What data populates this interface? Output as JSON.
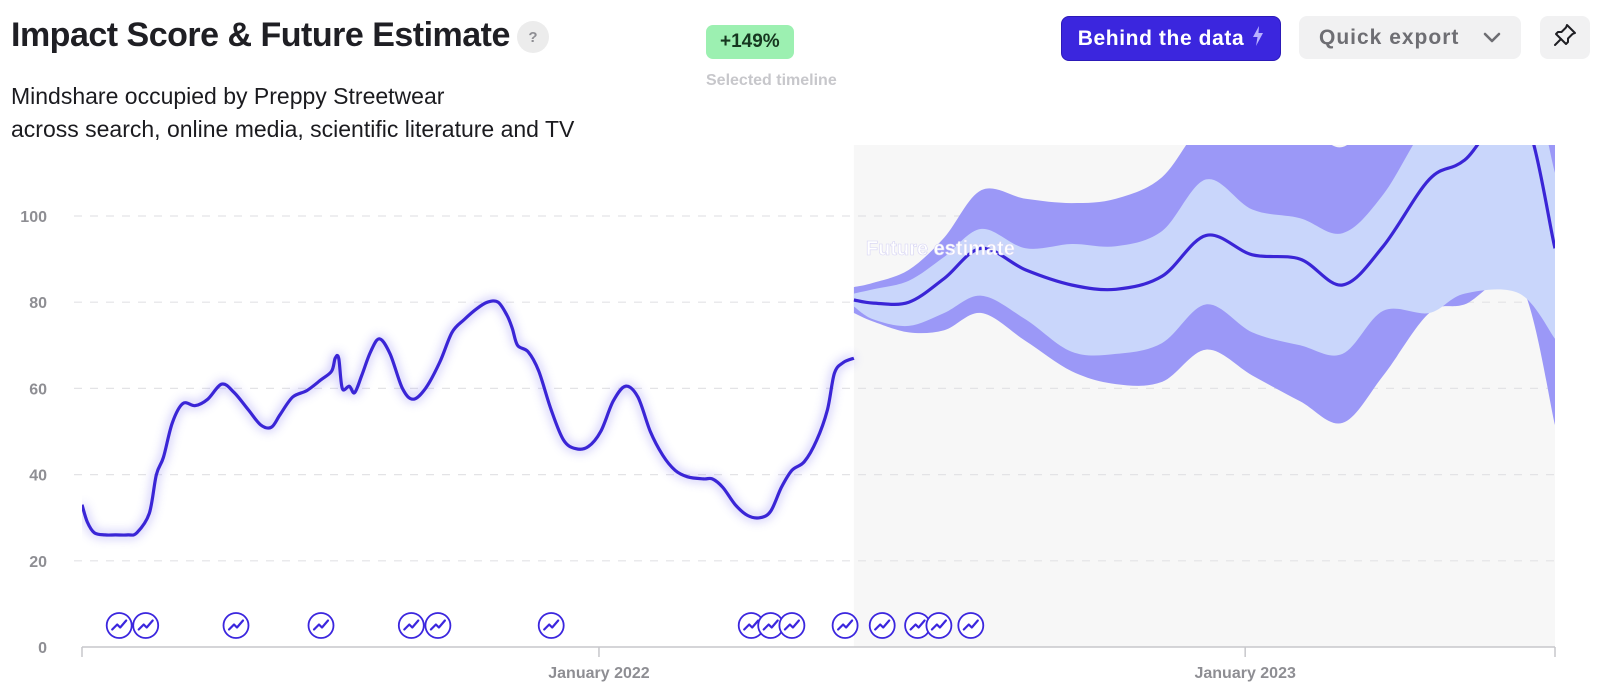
{
  "header": {
    "title": "Impact Score & Future Estimate",
    "help_label": "?",
    "subtitle_line1": "Mindshare occupied by Preppy Streetwear",
    "subtitle_line2": "across search, online media, scientific literature and TV",
    "badge_value": "+149%",
    "badge_caption": "Selected timeline"
  },
  "toolbar": {
    "behind_label": "Behind the data",
    "export_label": "Quick export",
    "icons": {
      "behind": "lightning-icon",
      "export": "chevron-down-icon",
      "pin": "pin-icon"
    }
  },
  "colors": {
    "accent": "#3b26de",
    "line": "#3a25d6",
    "band_outer": "#9b98f7",
    "band_inner": "#c9d6fb",
    "forecast_bg": "#f7f7f7",
    "badge_bg": "#9cf0b1"
  },
  "chart_data": {
    "type": "line",
    "title": "Impact Score & Future Estimate",
    "annotation": "Future estimate",
    "ylim": [
      0,
      100
    ],
    "y_ticks": [
      "0",
      "20",
      "40",
      "60",
      "80",
      "100"
    ],
    "x_ticks": [
      {
        "label": "January 2022",
        "date": "2022-01-01"
      },
      {
        "label": "January 2023",
        "date": "2023-01-01"
      }
    ],
    "x_range": [
      "2021-03-15",
      "2023-06-25"
    ],
    "forecast_start": "2022-05-25",
    "grid": true,
    "history": [
      [
        "2021-03-15",
        33
      ],
      [
        "2021-03-18",
        29
      ],
      [
        "2021-03-22",
        26.5
      ],
      [
        "2021-03-28",
        26
      ],
      [
        "2021-04-03",
        26
      ],
      [
        "2021-04-10",
        26
      ],
      [
        "2021-04-15",
        26.5
      ],
      [
        "2021-04-22",
        31
      ],
      [
        "2021-04-26",
        40
      ],
      [
        "2021-04-30",
        44
      ],
      [
        "2021-05-05",
        52
      ],
      [
        "2021-05-11",
        56.5
      ],
      [
        "2021-05-18",
        56
      ],
      [
        "2021-05-25",
        57.5
      ],
      [
        "2021-06-02",
        61
      ],
      [
        "2021-06-09",
        59
      ],
      [
        "2021-06-17",
        55
      ],
      [
        "2021-06-24",
        51.5
      ],
      [
        "2021-06-30",
        51
      ],
      [
        "2021-07-05",
        54
      ],
      [
        "2021-07-12",
        58
      ],
      [
        "2021-07-20",
        59.5
      ],
      [
        "2021-07-28",
        62
      ],
      [
        "2021-08-03",
        64
      ],
      [
        "2021-08-05",
        67
      ],
      [
        "2021-08-07",
        67
      ],
      [
        "2021-08-09",
        60
      ],
      [
        "2021-08-13",
        60.5
      ],
      [
        "2021-08-16",
        59
      ],
      [
        "2021-08-20",
        63
      ],
      [
        "2021-08-25",
        68.5
      ],
      [
        "2021-08-30",
        71.5
      ],
      [
        "2021-09-05",
        68
      ],
      [
        "2021-09-12",
        60
      ],
      [
        "2021-09-18",
        57.5
      ],
      [
        "2021-09-25",
        60
      ],
      [
        "2021-10-03",
        66
      ],
      [
        "2021-10-10",
        73
      ],
      [
        "2021-10-17",
        76
      ],
      [
        "2021-10-24",
        78.5
      ],
      [
        "2021-10-30",
        80
      ],
      [
        "2021-11-05",
        80
      ],
      [
        "2021-11-10",
        77
      ],
      [
        "2021-11-13",
        74
      ],
      [
        "2021-11-16",
        70
      ],
      [
        "2021-11-22",
        68.5
      ],
      [
        "2021-11-28",
        64
      ],
      [
        "2021-12-05",
        55
      ],
      [
        "2021-12-12",
        48
      ],
      [
        "2021-12-19",
        46
      ],
      [
        "2021-12-26",
        46.5
      ],
      [
        "2022-01-02",
        50
      ],
      [
        "2022-01-09",
        57
      ],
      [
        "2022-01-16",
        60.5
      ],
      [
        "2022-01-23",
        58
      ],
      [
        "2022-01-30",
        50
      ],
      [
        "2022-02-06",
        44.5
      ],
      [
        "2022-02-13",
        41
      ],
      [
        "2022-02-20",
        39.5
      ],
      [
        "2022-03-01",
        39
      ],
      [
        "2022-03-06",
        39
      ],
      [
        "2022-03-12",
        37
      ],
      [
        "2022-03-19",
        33
      ],
      [
        "2022-03-26",
        30.5
      ],
      [
        "2022-04-02",
        30
      ],
      [
        "2022-04-08",
        31.5
      ],
      [
        "2022-04-14",
        37
      ],
      [
        "2022-04-20",
        41
      ],
      [
        "2022-04-27",
        43
      ],
      [
        "2022-05-04",
        48
      ],
      [
        "2022-05-10",
        55
      ],
      [
        "2022-05-14",
        63.5
      ],
      [
        "2022-05-19",
        66
      ],
      [
        "2022-05-25",
        67
      ]
    ],
    "forecast": [
      {
        "date": "2022-05-25",
        "central": 80.5,
        "inner_hi": 82.0,
        "inner_lo": 79.0,
        "outer_hi": 83.5,
        "outer_lo": 77.5
      },
      {
        "date": "2022-06-05",
        "central": 79.8,
        "inner_hi": 83.0,
        "inner_lo": 76.0,
        "outer_hi": 84.5,
        "outer_lo": 75.5
      },
      {
        "date": "2022-06-25",
        "central": 80.0,
        "inner_hi": 85.0,
        "inner_lo": 74.5,
        "outer_hi": 87.5,
        "outer_lo": 73.0
      },
      {
        "date": "2022-07-15",
        "central": 85.5,
        "inner_hi": 90.5,
        "inner_lo": 77.5,
        "outer_hi": 95.0,
        "outer_lo": 73.5
      },
      {
        "date": "2022-08-05",
        "central": 92.5,
        "inner_hi": 97.0,
        "inner_lo": 81.5,
        "outer_hi": 106.0,
        "outer_lo": 77.5
      },
      {
        "date": "2022-08-30",
        "central": 87.5,
        "inner_hi": 92.5,
        "inner_lo": 76.0,
        "outer_hi": 104.0,
        "outer_lo": 71.0
      },
      {
        "date": "2022-09-25",
        "central": 84.0,
        "inner_hi": 93.5,
        "inner_lo": 68.5,
        "outer_hi": 103.0,
        "outer_lo": 64.0
      },
      {
        "date": "2022-10-20",
        "central": 83.0,
        "inner_hi": 93.0,
        "inner_lo": 68.0,
        "outer_hi": 104.0,
        "outer_lo": 61.0
      },
      {
        "date": "2022-11-15",
        "central": 86.0,
        "inner_hi": 96.5,
        "inner_lo": 70.5,
        "outer_hi": 109.0,
        "outer_lo": 61.5
      },
      {
        "date": "2022-12-10",
        "central": 95.5,
        "inner_hi": 108.5,
        "inner_lo": 79.5,
        "outer_hi": 122.0,
        "outer_lo": 69.0
      },
      {
        "date": "2023-01-05",
        "central": 91.0,
        "inner_hi": 101.5,
        "inner_lo": 73.0,
        "outer_hi": 123.0,
        "outer_lo": 63.0
      },
      {
        "date": "2023-02-01",
        "central": 90.0,
        "inner_hi": 99.5,
        "inner_lo": 70.0,
        "outer_hi": 122.0,
        "outer_lo": 57.0
      },
      {
        "date": "2023-02-25",
        "central": 84.0,
        "inner_hi": 96.0,
        "inner_lo": 68.0,
        "outer_hi": 116.0,
        "outer_lo": 52.0
      },
      {
        "date": "2023-03-20",
        "central": 93.0,
        "inner_hi": 105.0,
        "inner_lo": 78.0,
        "outer_hi": 127.0,
        "outer_lo": 63.0
      },
      {
        "date": "2023-04-15",
        "central": 108.5,
        "inner_hi": 122.0,
        "inner_lo": 77.5,
        "outer_hi": 140.0,
        "outer_lo": 77.5
      },
      {
        "date": "2023-05-05",
        "central": 113.0,
        "inner_hi": 125.0,
        "inner_lo": 82.0,
        "outer_hi": 148.0,
        "outer_lo": 79.5
      },
      {
        "date": "2023-06-05",
        "central": 125.0,
        "inner_hi": 138.0,
        "inner_lo": 82.0,
        "outer_hi": 160.0,
        "outer_lo": 84.5
      },
      {
        "date": "2023-06-25",
        "central": 92.5,
        "inner_hi": 110.0,
        "inner_lo": 71.5,
        "outer_hi": 121.0,
        "outer_lo": 51.5
      }
    ],
    "event_markers": [
      "2021-04-05",
      "2021-04-20",
      "2021-06-10",
      "2021-07-28",
      "2021-09-17",
      "2021-10-02",
      "2021-12-05",
      "2022-03-28",
      "2022-04-08",
      "2022-04-20",
      "2022-05-20",
      "2022-06-10",
      "2022-06-30",
      "2022-07-12",
      "2022-07-30"
    ]
  }
}
